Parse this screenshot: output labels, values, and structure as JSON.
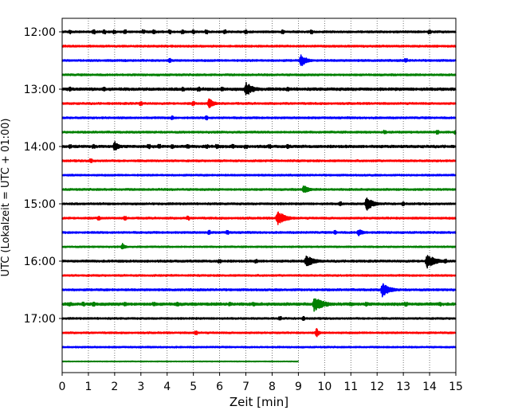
{
  "chart_data": {
    "type": "line",
    "title": "",
    "xlabel": "Zeit  [min]",
    "ylabel": "UTC (Lokalzeit = UTC + 01:00)",
    "x_ticks": [
      "0",
      "1",
      "2",
      "3",
      "4",
      "5",
      "6",
      "7",
      "8",
      "9",
      "10",
      "11",
      "12",
      "13",
      "14",
      "15"
    ],
    "xlim": [
      0,
      15
    ],
    "y_ticks": [
      "12:00",
      "13:00",
      "14:00",
      "15:00",
      "16:00",
      "17:00"
    ],
    "grid": "vertical dotted at each minute",
    "legend": "none",
    "colors": [
      "#000000",
      "#ff0000",
      "#0000ff",
      "#008000"
    ],
    "series": [
      {
        "start": "12:00",
        "color": "#000000",
        "length_min": 15,
        "noise": 0.1,
        "spikes": [
          0.3,
          1.2,
          1.6,
          2.0,
          2.4,
          3.1,
          3.5,
          4.1,
          4.6,
          5.0,
          5.5,
          6.2,
          7.0,
          8.4,
          9.5,
          14.0
        ]
      },
      {
        "start": "12:15",
        "color": "#ff0000",
        "length_min": 15,
        "noise": 0.1,
        "spikes": []
      },
      {
        "start": "12:30",
        "color": "#0000ff",
        "length_min": 15,
        "noise": 0.1,
        "events": [
          {
            "t": 9.1,
            "amp": 0.9,
            "dur": 0.6
          }
        ],
        "spikes": [
          4.1,
          13.1
        ]
      },
      {
        "start": "12:45",
        "color": "#008000",
        "length_min": 15,
        "noise": 0.1,
        "spikes": []
      },
      {
        "start": "13:00",
        "color": "#000000",
        "length_min": 15,
        "noise": 0.14,
        "events": [
          {
            "t": 7.0,
            "amp": 1.0,
            "dur": 0.8
          }
        ],
        "spikes": [
          0.3,
          1.6,
          4.6,
          5.2,
          6.1,
          8.6
        ]
      },
      {
        "start": "13:15",
        "color": "#ff0000",
        "length_min": 15,
        "noise": 0.1,
        "events": [
          {
            "t": 5.6,
            "amp": 0.8,
            "dur": 0.5
          }
        ],
        "spikes": [
          3.0,
          5.0
        ]
      },
      {
        "start": "13:30",
        "color": "#0000ff",
        "length_min": 15,
        "noise": 0.1,
        "spikes": [
          4.2,
          5.5
        ]
      },
      {
        "start": "13:45",
        "color": "#008000",
        "length_min": 15,
        "noise": 0.1,
        "spikes": [
          12.3,
          14.3,
          15.0
        ]
      },
      {
        "start": "14:00",
        "color": "#000000",
        "length_min": 15,
        "noise": 0.13,
        "events": [
          {
            "t": 2.0,
            "amp": 0.8,
            "dur": 0.4
          }
        ],
        "spikes": [
          0.3,
          1.2,
          3.3,
          3.7,
          4.2,
          4.8,
          5.5,
          5.9,
          6.5,
          7.0,
          7.9,
          8.6
        ]
      },
      {
        "start": "14:15",
        "color": "#ff0000",
        "length_min": 15,
        "noise": 0.1,
        "spikes": [
          1.1
        ]
      },
      {
        "start": "14:30",
        "color": "#0000ff",
        "length_min": 15,
        "noise": 0.09,
        "spikes": []
      },
      {
        "start": "14:45",
        "color": "#008000",
        "length_min": 15,
        "noise": 0.1,
        "events": [
          {
            "t": 9.2,
            "amp": 0.6,
            "dur": 0.6
          }
        ],
        "spikes": []
      },
      {
        "start": "15:00",
        "color": "#000000",
        "length_min": 15,
        "noise": 0.1,
        "events": [
          {
            "t": 11.6,
            "amp": 1.0,
            "dur": 0.7
          }
        ],
        "spikes": [
          10.6,
          13.0
        ]
      },
      {
        "start": "15:15",
        "color": "#ff0000",
        "length_min": 15,
        "noise": 0.1,
        "events": [
          {
            "t": 8.2,
            "amp": 1.0,
            "dur": 0.9
          }
        ],
        "spikes": [
          1.4,
          2.4,
          4.8
        ]
      },
      {
        "start": "15:30",
        "color": "#0000ff",
        "length_min": 15,
        "noise": 0.1,
        "events": [
          {
            "t": 11.3,
            "amp": 0.5,
            "dur": 0.5
          }
        ],
        "spikes": [
          5.6,
          6.3,
          10.4
        ]
      },
      {
        "start": "15:45",
        "color": "#008000",
        "length_min": 15,
        "noise": 0.08,
        "events": [
          {
            "t": 2.3,
            "amp": 0.5,
            "dur": 0.3
          }
        ],
        "spikes": []
      },
      {
        "start": "16:00",
        "color": "#000000",
        "length_min": 15,
        "noise": 0.11,
        "events": [
          {
            "t": 9.3,
            "amp": 0.8,
            "dur": 0.9
          },
          {
            "t": 13.9,
            "amp": 1.0,
            "dur": 0.9
          }
        ],
        "spikes": [
          6.0,
          7.4,
          14.6
        ]
      },
      {
        "start": "16:15",
        "color": "#ff0000",
        "length_min": 15,
        "noise": 0.09,
        "spikes": []
      },
      {
        "start": "16:30",
        "color": "#0000ff",
        "length_min": 15,
        "noise": 0.11,
        "events": [
          {
            "t": 12.2,
            "amp": 1.0,
            "dur": 0.8
          }
        ],
        "spikes": []
      },
      {
        "start": "16:45",
        "color": "#008000",
        "length_min": 15,
        "noise": 0.14,
        "events": [
          {
            "t": 9.6,
            "amp": 1.0,
            "dur": 1.1
          }
        ],
        "spikes": [
          0.3,
          0.8,
          1.2,
          2.4,
          3.5,
          4.4,
          6.4,
          7.3,
          11.0,
          11.6,
          13.1,
          14.4
        ]
      },
      {
        "start": "17:00",
        "color": "#000000",
        "length_min": 15,
        "noise": 0.09,
        "spikes": [
          8.3,
          9.2
        ]
      },
      {
        "start": "17:15",
        "color": "#ff0000",
        "length_min": 15,
        "noise": 0.09,
        "events": [
          {
            "t": 9.7,
            "amp": 0.7,
            "dur": 0.25
          }
        ],
        "spikes": [
          5.1
        ]
      },
      {
        "start": "17:30",
        "color": "#0000ff",
        "length_min": 15,
        "noise": 0.08,
        "spikes": []
      },
      {
        "start": "17:45",
        "color": "#008000",
        "length_min": 9,
        "noise": 0.04,
        "spikes": []
      }
    ]
  }
}
